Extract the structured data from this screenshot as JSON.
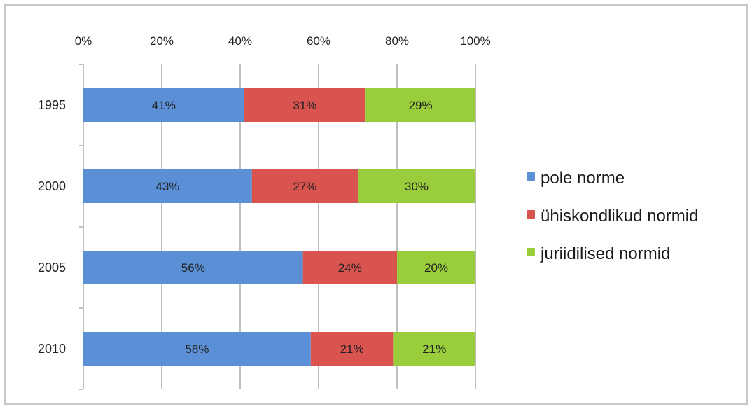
{
  "chart_data": {
    "type": "bar",
    "orientation": "horizontal",
    "stacked": true,
    "percent_stacked": true,
    "categories": [
      "1995",
      "2000",
      "2005",
      "2010"
    ],
    "series": [
      {
        "name": "pole norme",
        "color": "#5b8fd6",
        "values": [
          41,
          43,
          56,
          58
        ],
        "labels": [
          "41%",
          "43%",
          "56%",
          "58%"
        ]
      },
      {
        "name": "ühiskondlikud normid",
        "color": "#d9534f",
        "values": [
          31,
          27,
          24,
          21
        ],
        "labels": [
          "31%",
          "27%",
          "24%",
          "21%"
        ]
      },
      {
        "name": "juriidilised normid",
        "color": "#9acd3c",
        "values": [
          29,
          30,
          20,
          21
        ],
        "labels": [
          "29%",
          "30%",
          "20%",
          "21%"
        ]
      }
    ],
    "xticks": [
      "0%",
      "20%",
      "40%",
      "60%",
      "80%",
      "100%"
    ],
    "xlim": [
      0,
      100
    ],
    "x_axis_position": "top",
    "grid": true,
    "legend_position": "right"
  }
}
